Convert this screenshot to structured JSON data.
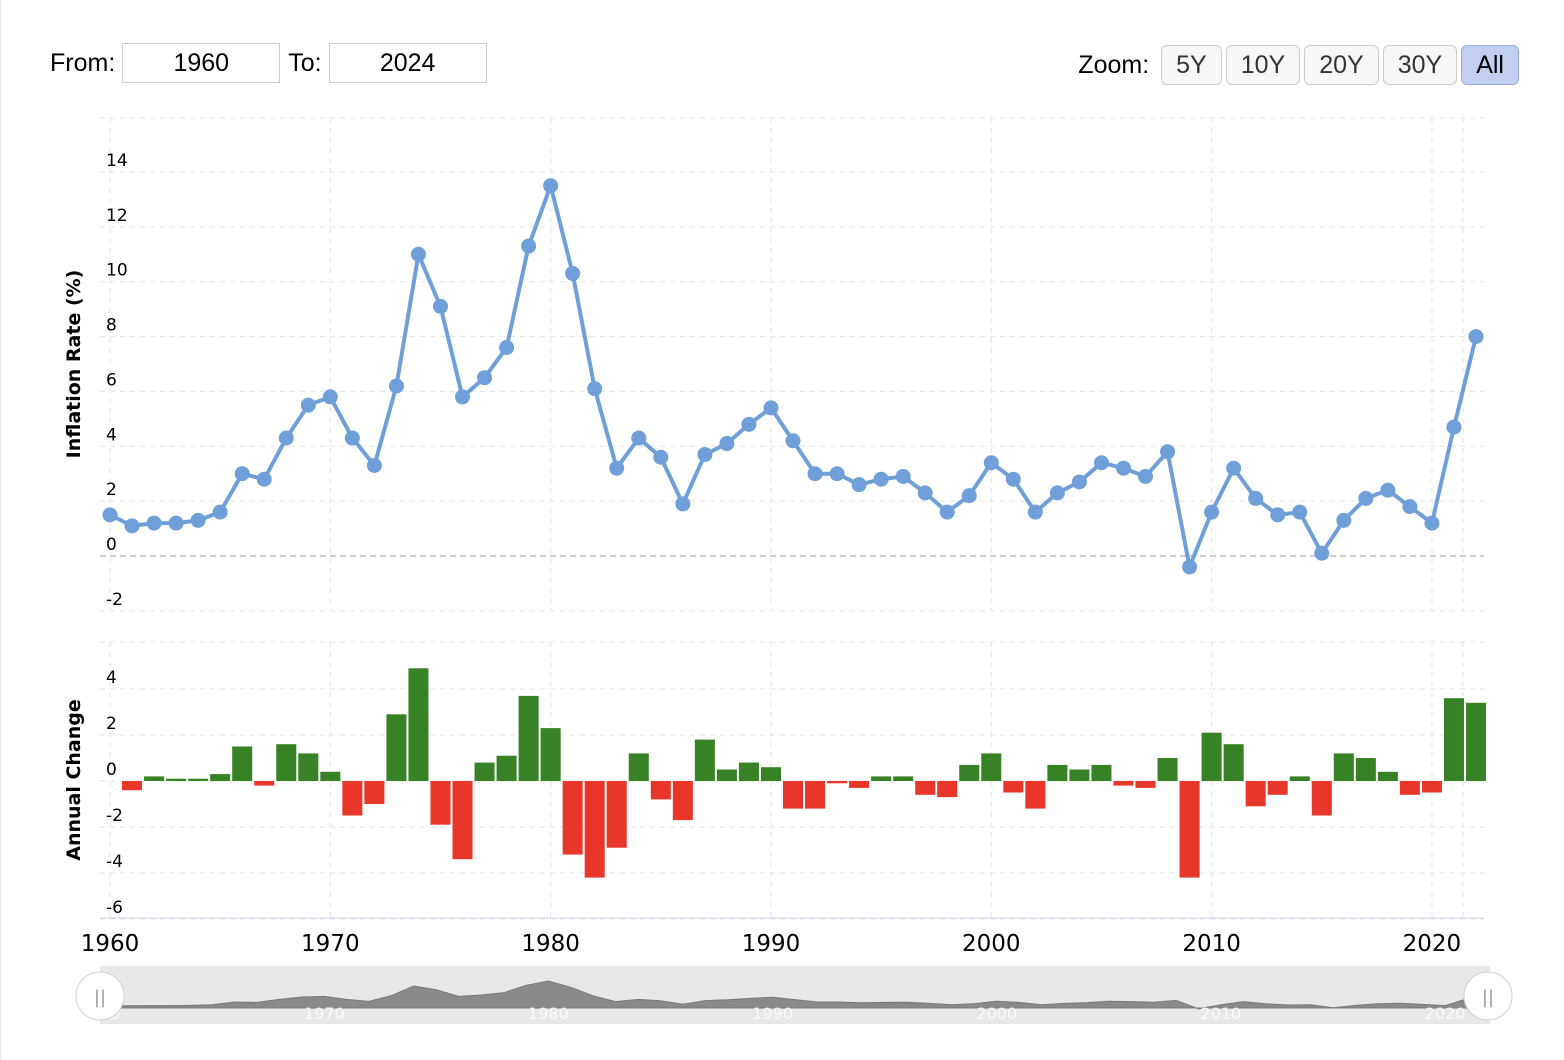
{
  "range": {
    "from_label": "From:",
    "from_value": "1960",
    "to_label": "To:",
    "to_value": "2024"
  },
  "zoom": {
    "label": "Zoom:",
    "buttons": [
      {
        "label": "5Y",
        "active": false
      },
      {
        "label": "10Y",
        "active": false
      },
      {
        "label": "20Y",
        "active": false
      },
      {
        "label": "30Y",
        "active": false
      },
      {
        "label": "All",
        "active": true
      }
    ]
  },
  "colors": {
    "line": "#6f9fd8",
    "positive": "#368224",
    "negative": "#e8372a",
    "navigator": "#8a8a8a"
  },
  "chart_data": [
    {
      "type": "line",
      "ylabel": "Inflation Rate (%)",
      "ylim": [
        -2,
        14
      ],
      "yticks": [
        "-2",
        "0",
        "2",
        "4",
        "6",
        "8",
        "10",
        "12",
        "14"
      ],
      "grid": true,
      "x": [
        1960,
        1961,
        1962,
        1963,
        1964,
        1965,
        1966,
        1967,
        1968,
        1969,
        1970,
        1971,
        1972,
        1973,
        1974,
        1975,
        1976,
        1977,
        1978,
        1979,
        1980,
        1981,
        1982,
        1983,
        1984,
        1985,
        1986,
        1987,
        1988,
        1989,
        1990,
        1991,
        1992,
        1993,
        1994,
        1995,
        1996,
        1997,
        1998,
        1999,
        2000,
        2001,
        2002,
        2003,
        2004,
        2005,
        2006,
        2007,
        2008,
        2009,
        2010,
        2011,
        2012,
        2013,
        2014,
        2015,
        2016,
        2017,
        2018,
        2019,
        2020,
        2021,
        2022
      ],
      "values": [
        1.5,
        1.1,
        1.2,
        1.2,
        1.3,
        1.6,
        3.0,
        2.8,
        4.3,
        5.5,
        5.8,
        4.3,
        3.3,
        6.2,
        11.0,
        9.1,
        5.8,
        6.5,
        7.6,
        11.3,
        13.5,
        10.3,
        6.1,
        3.2,
        4.3,
        3.6,
        1.9,
        3.7,
        4.1,
        4.8,
        5.4,
        4.2,
        3.0,
        3.0,
        2.6,
        2.8,
        2.9,
        2.3,
        1.6,
        2.2,
        3.4,
        2.8,
        1.6,
        2.3,
        2.7,
        3.4,
        3.2,
        2.9,
        3.8,
        -0.4,
        1.6,
        3.2,
        2.1,
        1.5,
        1.6,
        0.1,
        1.3,
        2.1,
        2.4,
        1.8,
        1.2,
        4.7,
        8.0
      ]
    },
    {
      "type": "bar",
      "ylabel": "Annual Change",
      "ylim": [
        -6,
        5
      ],
      "yticks": [
        "-6",
        "-4",
        "-2",
        "0",
        "2",
        "4"
      ],
      "x": [
        1961,
        1962,
        1963,
        1964,
        1965,
        1966,
        1967,
        1968,
        1969,
        1970,
        1971,
        1972,
        1973,
        1974,
        1975,
        1976,
        1977,
        1978,
        1979,
        1980,
        1981,
        1982,
        1983,
        1984,
        1985,
        1986,
        1987,
        1988,
        1989,
        1990,
        1991,
        1992,
        1993,
        1994,
        1995,
        1996,
        1997,
        1998,
        1999,
        2000,
        2001,
        2002,
        2003,
        2004,
        2005,
        2006,
        2007,
        2008,
        2009,
        2010,
        2011,
        2012,
        2013,
        2014,
        2015,
        2016,
        2017,
        2018,
        2019,
        2020,
        2021,
        2022
      ],
      "values": [
        -0.4,
        0.2,
        0.1,
        0.1,
        0.3,
        1.5,
        -0.2,
        1.6,
        1.2,
        0.4,
        -1.5,
        -1.0,
        2.9,
        4.9,
        -1.9,
        -3.4,
        0.8,
        1.1,
        3.7,
        2.3,
        -3.2,
        -4.2,
        -2.9,
        1.2,
        -0.8,
        -1.7,
        1.8,
        0.5,
        0.8,
        0.6,
        -1.2,
        -1.2,
        -0.1,
        -0.3,
        0.2,
        0.2,
        -0.6,
        -0.7,
        0.7,
        1.2,
        -0.5,
        -1.2,
        0.7,
        0.5,
        0.7,
        -0.2,
        -0.3,
        1.0,
        -4.2,
        2.1,
        1.6,
        -1.1,
        -0.6,
        0.2,
        -1.5,
        1.2,
        1.0,
        0.4,
        -0.6,
        -0.5,
        3.6,
        3.4
      ]
    }
  ],
  "xaxis": {
    "ticks": [
      "1960",
      "1970",
      "1980",
      "1990",
      "2000",
      "2010",
      "2020"
    ],
    "years": [
      1960,
      1970,
      1980,
      1990,
      2000,
      2010,
      2020
    ],
    "range": [
      1960,
      2022
    ]
  },
  "navigator": {
    "ticks": [
      "1960",
      "1970",
      "1980",
      "1990",
      "2000",
      "2010",
      "2020"
    ],
    "handle_glyph": "||"
  }
}
